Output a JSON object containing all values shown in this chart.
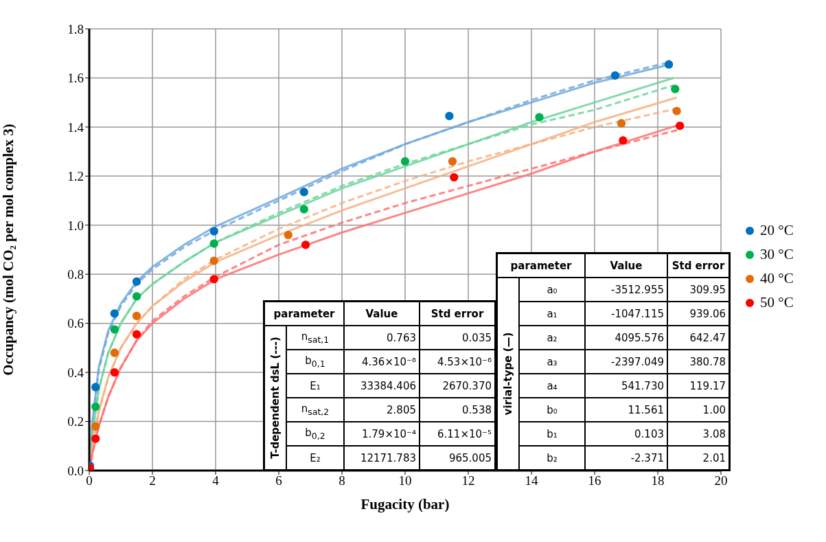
{
  "chart_data": {
    "type": "scatter",
    "xlabel": "Fugacity (bar)",
    "ylabel": "Occupancy (mol CO₂ per mol complex 3)",
    "xlim": [
      0,
      20
    ],
    "xticks": [
      0,
      2,
      4,
      6,
      8,
      10,
      12,
      14,
      16,
      18,
      20
    ],
    "ylim": [
      0,
      1.8
    ],
    "yticks": [
      {
        "value": 0,
        "label": "0.0"
      },
      {
        "value": 0.2,
        "label": "0.2"
      },
      {
        "value": 0.4,
        "label": "0.4"
      },
      {
        "value": 0.6,
        "label": "0.6"
      },
      {
        "value": 0.8,
        "label": "0.8"
      },
      {
        "value": 1,
        "label": "1.0"
      },
      {
        "value": 1.2,
        "label": "1.2"
      },
      {
        "value": 1.4,
        "label": "1.4"
      },
      {
        "value": 1.6,
        "label": "1.6"
      },
      {
        "value": 1.8,
        "label": "1.8"
      }
    ],
    "grid": true,
    "legend": "right",
    "marker": "circle",
    "series": [
      {
        "type": "line",
        "color": "#6fa8dc",
        "line_style": "solid",
        "marker": "none",
        "x": [
          0,
          0.1,
          0.3,
          0.6,
          1,
          1.5,
          2,
          3,
          4,
          6,
          8,
          10,
          12,
          14,
          16,
          18.4
        ],
        "values": [
          0,
          0.2,
          0.42,
          0.57,
          0.68,
          0.77,
          0.83,
          0.92,
          0.995,
          1.11,
          1.23,
          1.33,
          1.42,
          1.5,
          1.58,
          1.655
        ]
      },
      {
        "type": "line",
        "color": "#6fa8dc",
        "line_style": "dashed",
        "marker": "none",
        "x": [
          0,
          0.1,
          0.3,
          0.6,
          1,
          1.5,
          2,
          3,
          4,
          6,
          8,
          10,
          12,
          14,
          16,
          18.4
        ],
        "values": [
          0,
          0.19,
          0.41,
          0.56,
          0.67,
          0.76,
          0.82,
          0.91,
          0.98,
          1.1,
          1.22,
          1.33,
          1.42,
          1.51,
          1.59,
          1.665
        ]
      },
      {
        "type": "line",
        "color": "#6fd49b",
        "line_style": "solid",
        "marker": "none",
        "x": [
          0,
          0.1,
          0.3,
          0.6,
          1,
          1.5,
          2,
          3,
          4,
          6,
          8,
          10,
          12,
          14,
          16,
          18.5
        ],
        "values": [
          0,
          0.15,
          0.33,
          0.48,
          0.6,
          0.7,
          0.76,
          0.85,
          0.93,
          1.04,
          1.15,
          1.24,
          1.33,
          1.42,
          1.5,
          1.6
        ]
      },
      {
        "type": "line",
        "color": "#6fd49b",
        "line_style": "dashed",
        "marker": "none",
        "x": [
          0,
          0.1,
          0.3,
          0.6,
          1,
          1.5,
          2,
          3,
          4,
          6,
          8,
          10,
          12,
          14,
          16,
          18.5
        ],
        "values": [
          0,
          0.15,
          0.33,
          0.48,
          0.6,
          0.7,
          0.76,
          0.85,
          0.93,
          1.05,
          1.16,
          1.25,
          1.33,
          1.41,
          1.47,
          1.57
        ]
      },
      {
        "type": "line",
        "color": "#f4b183",
        "line_style": "solid",
        "marker": "none",
        "x": [
          0,
          0.1,
          0.3,
          0.6,
          1,
          1.5,
          2,
          3,
          4,
          6,
          8,
          10,
          12,
          14,
          16,
          18.6
        ],
        "values": [
          0,
          0.1,
          0.24,
          0.38,
          0.5,
          0.6,
          0.67,
          0.77,
          0.85,
          0.96,
          1.06,
          1.15,
          1.24,
          1.33,
          1.42,
          1.52
        ]
      },
      {
        "type": "line",
        "color": "#f4b183",
        "line_style": "dashed",
        "marker": "none",
        "x": [
          0,
          0.1,
          0.3,
          0.6,
          1,
          1.5,
          2,
          3,
          4,
          6,
          8,
          10,
          12,
          14,
          16,
          18.6
        ],
        "values": [
          0,
          0.1,
          0.24,
          0.38,
          0.5,
          0.6,
          0.67,
          0.78,
          0.86,
          0.985,
          1.09,
          1.18,
          1.26,
          1.33,
          1.4,
          1.475
        ]
      },
      {
        "type": "line",
        "color": "#ff7070",
        "line_style": "solid",
        "marker": "none",
        "x": [
          0,
          0.1,
          0.3,
          0.6,
          1,
          1.5,
          2,
          3,
          4,
          6,
          8,
          10,
          12,
          14,
          16,
          18.7
        ],
        "values": [
          0,
          0.07,
          0.18,
          0.3,
          0.42,
          0.53,
          0.6,
          0.7,
          0.78,
          0.88,
          0.97,
          1.05,
          1.13,
          1.21,
          1.3,
          1.41
        ]
      },
      {
        "type": "line",
        "color": "#ff7070",
        "line_style": "dashed",
        "marker": "none",
        "x": [
          0,
          0.1,
          0.3,
          0.6,
          1,
          1.5,
          2,
          3,
          4,
          6,
          8,
          10,
          12,
          14,
          16,
          18.7
        ],
        "values": [
          0,
          0.07,
          0.18,
          0.3,
          0.42,
          0.53,
          0.61,
          0.71,
          0.79,
          0.92,
          1.01,
          1.09,
          1.16,
          1.23,
          1.3,
          1.39
        ]
      },
      {
        "type": "scatter",
        "name": "20 °C",
        "color": "#0070c0",
        "x": [
          0.02,
          0.2,
          0.8,
          1.5,
          3.95,
          6.8,
          11.4,
          16.65,
          18.35
        ],
        "values": [
          0.02,
          0.34,
          0.64,
          0.77,
          0.975,
          1.135,
          1.445,
          1.61,
          1.655
        ]
      },
      {
        "type": "scatter",
        "name": "30 °C",
        "color": "#00b050",
        "x": [
          0.2,
          0.8,
          1.5,
          3.95,
          6.8,
          10,
          14.25,
          18.55
        ],
        "values": [
          0.26,
          0.575,
          0.71,
          0.925,
          1.065,
          1.26,
          1.44,
          1.555
        ]
      },
      {
        "type": "scatter",
        "name": "40 °C",
        "color": "#e36c0a",
        "x": [
          0.2,
          0.8,
          1.5,
          3.95,
          6.3,
          11.5,
          16.85,
          18.6
        ],
        "values": [
          0.18,
          0.48,
          0.63,
          0.855,
          0.96,
          1.26,
          1.415,
          1.465
        ]
      },
      {
        "type": "scatter",
        "name": "50 °C",
        "color": "#ff0000",
        "x": [
          0.02,
          0.2,
          0.8,
          1.5,
          3.95,
          6.85,
          11.55,
          16.9,
          18.7
        ],
        "values": [
          0.01,
          0.13,
          0.4,
          0.555,
          0.78,
          0.92,
          1.195,
          1.345,
          1.405
        ]
      }
    ],
    "annotations": [
      "parameter",
      "Value",
      "Std error",
      "T-dependent dsL (---)",
      "n$_{sat,1}$",
      "0.763",
      "0.035",
      "b$_{0,1}$",
      "4.36×10⁻⁶",
      "4.53×10⁻⁶",
      "E₁",
      "33384.406",
      "2670.370",
      "n$_{sat,2}$",
      "2.805",
      "0.538",
      "b$_{0,2}$",
      "1.79×10⁻⁴",
      "6.11×10⁻⁵",
      "E₂",
      "12171.783",
      "965.005",
      "parameter",
      "Value",
      "Std error",
      "virial-type (—)",
      "a₀",
      "-3512.955",
      "309.95",
      "a₁",
      "-1047.115",
      "939.06",
      "a₂",
      "4095.576",
      "642.47",
      "a₃",
      "-2397.049",
      "380.78",
      "a₄",
      "541.730",
      "119.17",
      "b₀",
      "11.561",
      "1.00",
      "b₁",
      "0.103",
      "3.08",
      "b₂",
      "-2.371",
      "2.01"
    ]
  }
}
